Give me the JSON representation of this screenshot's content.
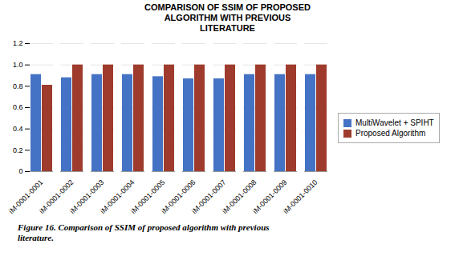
{
  "chart_data": {
    "type": "bar",
    "title": "COMPARISON OF SSIM OF PROPOSED\nALGORITHM WITH PREVIOUS\nLITERATURE",
    "caption": "Figure 16. Comparison of SSIM of proposed algorithm with previous\nliterature.",
    "categories": [
      "iM-0001-0001",
      "iM-0001-0002",
      "iM-0001-0003",
      "iM-0001-0004",
      "iM-0001-0005",
      "iM-0001-0006",
      "iM-0001-0007",
      "iM-0001-0008",
      "iM-0001-0009",
      "iM-0001-0010"
    ],
    "series": [
      {
        "name": "MultiWavelet + SPIHT",
        "color": "#4472C4",
        "values": [
          0.91,
          0.88,
          0.91,
          0.91,
          0.89,
          0.87,
          0.87,
          0.91,
          0.91,
          0.91
        ]
      },
      {
        "name": "Proposed Algorithm",
        "color": "#9E3B2C",
        "values": [
          0.81,
          1.0,
          1.0,
          1.0,
          1.0,
          1.0,
          1.0,
          1.0,
          1.0,
          1.0
        ]
      }
    ],
    "ylim": [
      0,
      1.2
    ],
    "yticks": [
      0,
      0.2,
      0.4,
      0.6,
      0.8,
      {
        "value": 1.0,
        "label": "1.0"
      },
      1.2
    ],
    "grid": true,
    "legend": "right"
  }
}
